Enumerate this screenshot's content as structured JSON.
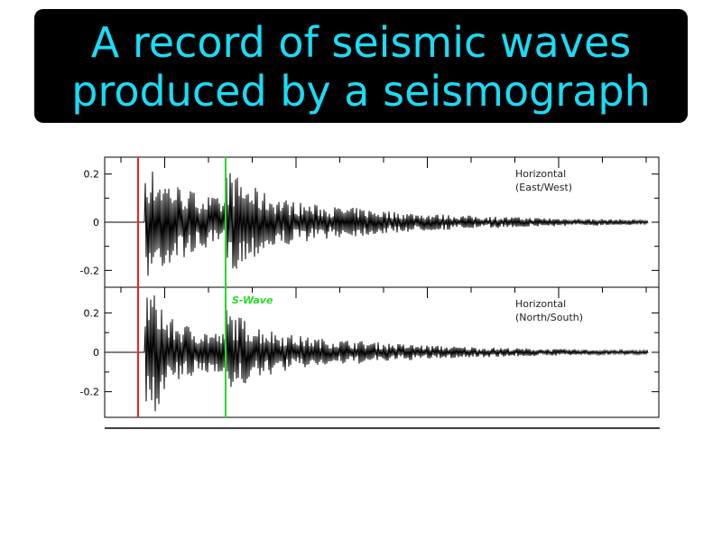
{
  "title": {
    "lines": [
      "A record of seismic waves",
      "produced by a seismograph"
    ]
  },
  "colors": {
    "title_text": "#19dcf6",
    "title_bg": "#000000",
    "p_marker": "#ee2020",
    "s_marker": "#22dd22",
    "trace": "#000000"
  },
  "chart_data": {
    "type": "line",
    "title": "",
    "panels": [
      {
        "label_lines": [
          "Horizontal",
          "(East/West)"
        ],
        "ylim": [
          -0.27,
          0.27
        ],
        "yticks": [
          "0.2",
          "0",
          "-0.2"
        ],
        "ytick_values": [
          0.2,
          0,
          -0.2
        ]
      },
      {
        "label_lines": [
          "Horizontal",
          "(North/South)"
        ],
        "ylim": [
          -0.33,
          0.33
        ],
        "yticks": [
          "0.2",
          "0",
          "-0.2"
        ],
        "ytick_values": [
          0.2,
          0,
          -0.2
        ]
      }
    ],
    "markers": [
      {
        "name": "P-wave arrival",
        "color": "#ee2020",
        "label": ""
      },
      {
        "name": "S-wave arrival",
        "color": "#22dd22",
        "label": "S-Wave"
      }
    ],
    "grid": false,
    "xlabel": "",
    "ylabel": ""
  }
}
